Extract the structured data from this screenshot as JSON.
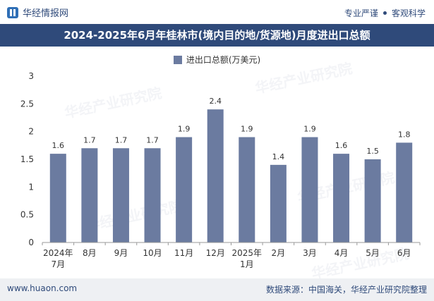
{
  "header": {
    "brand": "华经情报网",
    "tags": [
      "专业严谨",
      "客观科学"
    ]
  },
  "title": "2024-2025年6月年桂林市(境内目的地/货源地)月度进出口总额",
  "footer": {
    "url": "www.huaon.com",
    "source": "数据来源：中国海关，华经产业研究院整理"
  },
  "watermark": "华经产业研究院",
  "colors": {
    "bar": "#6b7ba0",
    "title_bg": "#2f4a7a"
  },
  "chart_data": {
    "type": "bar",
    "legend": "进出口总额(万美元)",
    "categories": [
      "2024年\n7月",
      "8月",
      "9月",
      "10月",
      "11月",
      "12月",
      "2025年\n1月",
      "2月",
      "3月",
      "4月",
      "5月",
      "6月"
    ],
    "values": [
      1.6,
      1.7,
      1.7,
      1.7,
      1.9,
      2.4,
      1.9,
      1.4,
      1.9,
      1.6,
      1.5,
      1.8
    ],
    "ylim": [
      0,
      3
    ],
    "yticks": [
      0,
      0.5,
      1,
      1.5,
      2,
      2.5,
      3
    ],
    "ytick_labels": [
      "0",
      "0.5",
      "1",
      "1.5",
      "2",
      "2.5",
      "3"
    ],
    "grid": false
  }
}
